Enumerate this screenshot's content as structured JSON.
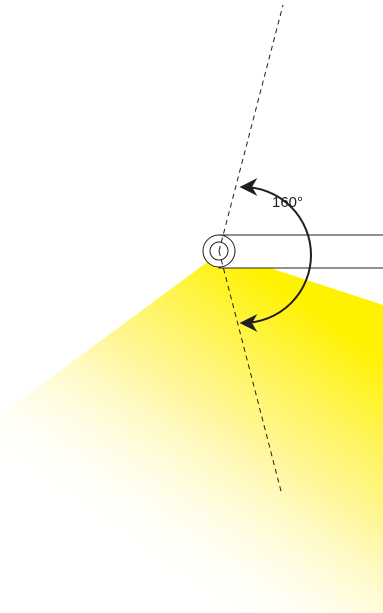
{
  "diagram": {
    "angle_label": "160°",
    "colors": {
      "stroke": "#231f20",
      "beam_bright": "#fff200",
      "beam_fade": "#ffffff",
      "background": "#ffffff"
    }
  }
}
